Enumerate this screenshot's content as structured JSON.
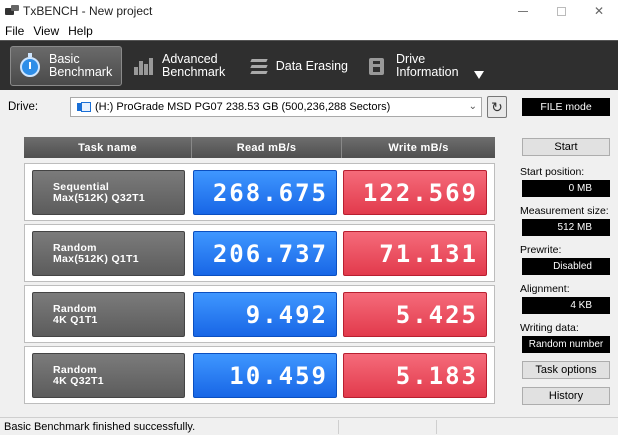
{
  "window": {
    "title": "TxBENCH - New project"
  },
  "menu": [
    "File",
    "View",
    "Help"
  ],
  "toolbar": {
    "tabs": [
      {
        "line1": "Basic",
        "line2": "Benchmark",
        "icon": "stopwatch-icon"
      },
      {
        "line1": "Advanced",
        "line2": "Benchmark",
        "icon": "bar-chart-icon"
      },
      {
        "line1": "Data Erasing",
        "line2": "",
        "icon": "eraser-icon"
      },
      {
        "line1": "Drive",
        "line2": "Information",
        "icon": "drive-info-icon"
      }
    ]
  },
  "drive": {
    "label": "Drive:",
    "selected": "(H:) ProGrade MSD PG07  238.53 GB (500,236,288 Sectors)",
    "mode": "FILE mode"
  },
  "table": {
    "headers": [
      "Task name",
      "Read mB/s",
      "Write mB/s"
    ],
    "rows": [
      {
        "line1": "Sequential",
        "line2": "Max(512K) Q32T1",
        "read": "268.675",
        "write": "122.569"
      },
      {
        "line1": "Random",
        "line2": "Max(512K) Q1T1",
        "read": "206.737",
        "write": "71.131"
      },
      {
        "line1": "Random",
        "line2": "4K Q1T1",
        "read": "9.492",
        "write": "5.425"
      },
      {
        "line1": "Random",
        "line2": "4K Q32T1",
        "read": "10.459",
        "write": "5.183"
      }
    ]
  },
  "panel": {
    "start": "Start",
    "start_position_label": "Start position:",
    "start_position": "0 MB",
    "measurement_size_label": "Measurement size:",
    "measurement_size": "512 MB",
    "prewrite_label": "Prewrite:",
    "prewrite": "Disabled",
    "alignment_label": "Alignment:",
    "alignment": "4 KB",
    "writing_data_label": "Writing data:",
    "writing_data": "Random number",
    "task_options": "Task options",
    "history": "History"
  },
  "status": {
    "message": "Basic Benchmark finished successfully."
  },
  "colors": {
    "read": "#1f6ff0",
    "write": "#e8465a",
    "toolbar": "#2f2f2f"
  }
}
